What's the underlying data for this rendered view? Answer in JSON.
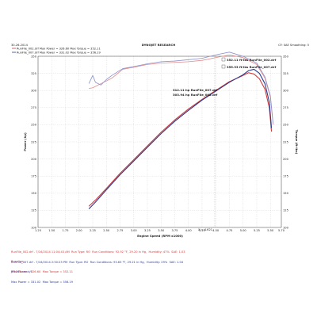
{
  "header": {
    "left": "30-26-2014",
    "center": "DYNOJET RESEARCH",
    "right": "CF: SAE  Smoothing: 5"
  },
  "legend": [
    {
      "text": "RunFile_002.drf  Max Power = 326.60  Max Torque = 352.11",
      "color": "#d33b3b"
    },
    {
      "text": "RunFile_007.drf  Max Power = 331.02  Max Torque = 356.19",
      "color": "#2b3a8f"
    }
  ],
  "callouts": {
    "tq_red": "352.11 ft-lbs RunFile_002.drf",
    "tq_blue": "355.93 ft-lbs RunFile_007.drf",
    "hp_red": "312.11 hp RunFile_007.drf",
    "hp_blue": "303.94 hp RunFile_002.drf",
    "x_marker": "X = 4.621"
  },
  "footer": {
    "red_line1": "RunFile_002.drf - 7/16/2014 11:04:43 AM  Run Type: RO  Run Conditions: 92.92 °F, 29.20 in Hg,  Humidity: 47%  SAE: 1.03",
    "red_line2": "Baseline",
    "red_line3": "Max Power = 326.60  Max Torque = 352.11",
    "blue_line1": "RunFile_007.drf - 7/16/2014 2:50:25 PM  Run Type: RO  Run Conditions: 93.63 °F, 29.21 in Hg,  Humidity: 29%  SAE: 1.04",
    "blue_line2": "JP5063 new t/l",
    "blue_line3": "Max Power = 331.02  Max Torque = 356.19"
  },
  "colors": {
    "red": "#d33b3b",
    "blue": "#2b3a8f",
    "pink": "#e58b8b",
    "lightblue": "#8b93cc"
  },
  "chart_data": {
    "type": "line",
    "xlabel": "Engine Speed (RPM x1000)",
    "ylabel_left": "Power (hp)",
    "ylabel_right": "Torque (ft-lbs)",
    "xlim": [
      1.25,
      5.7
    ],
    "ylim_left": [
      100,
      350
    ],
    "ylim_right": [
      100,
      350
    ],
    "xticks": [
      "1.25",
      "1.50",
      "1.75",
      "2.00",
      "2.25",
      "2.50",
      "2.75",
      "3.00",
      "3.25",
      "3.50",
      "3.75",
      "4.00",
      "4.25",
      "4.50",
      "4.75",
      "5.00",
      "5.25",
      "5.50",
      "5.70"
    ],
    "yticks": [
      "100",
      "125",
      "150",
      "175",
      "200",
      "225",
      "250",
      "275",
      "300",
      "325",
      "350"
    ],
    "grid": true,
    "legend_position": "top-left",
    "series": [
      {
        "name": "RunFile_002.drf",
        "measure": "Power",
        "color": "#d33b3b",
        "x": [
          2.18,
          2.3,
          2.5,
          2.75,
          3.0,
          3.25,
          3.5,
          3.75,
          4.0,
          4.25,
          4.5,
          4.75,
          5.0,
          5.1,
          5.2,
          5.3,
          5.4,
          5.48,
          5.52
        ],
        "y": [
          131,
          140,
          157,
          179,
          199,
          219,
          239,
          257,
          273,
          287,
          300,
          313,
          322,
          326,
          324,
          317,
          302,
          275,
          240
        ]
      },
      {
        "name": "RunFile_007.drf",
        "measure": "Power",
        "color": "#2b3a8f",
        "x": [
          2.18,
          2.3,
          2.5,
          2.75,
          3.0,
          3.25,
          3.5,
          3.75,
          4.0,
          4.25,
          4.5,
          4.75,
          5.0,
          5.1,
          5.2,
          5.3,
          5.4,
          5.48,
          5.52
        ],
        "y": [
          127,
          137,
          155,
          177,
          197,
          217,
          237,
          255,
          271,
          286,
          299,
          312,
          323,
          329,
          331,
          325,
          310,
          283,
          245
        ]
      },
      {
        "name": "RunFile_002.drf",
        "measure": "Torque",
        "color": "#e58b8b",
        "x": [
          2.18,
          2.25,
          2.4,
          2.6,
          2.8,
          3.0,
          3.25,
          3.5,
          3.75,
          4.0,
          4.25,
          4.5,
          4.75,
          5.0,
          5.25,
          5.4,
          5.5,
          5.55
        ],
        "y": [
          303,
          304,
          310,
          318,
          331,
          334,
          338,
          340,
          341,
          342,
          344,
          348,
          352,
          348,
          338,
          318,
          290,
          250
        ]
      },
      {
        "name": "RunFile_007.drf",
        "measure": "Torque",
        "color": "#8b93cc",
        "x": [
          2.18,
          2.25,
          2.3,
          2.4,
          2.5,
          2.6,
          2.8,
          3.0,
          3.25,
          3.5,
          3.75,
          4.0,
          4.25,
          4.5,
          4.75,
          5.0,
          5.25,
          5.4,
          5.5,
          5.55
        ],
        "y": [
          310,
          322,
          312,
          308,
          316,
          322,
          332,
          335,
          339,
          342,
          343,
          345,
          347,
          352,
          356,
          350,
          340,
          320,
          292,
          252
        ]
      }
    ]
  }
}
